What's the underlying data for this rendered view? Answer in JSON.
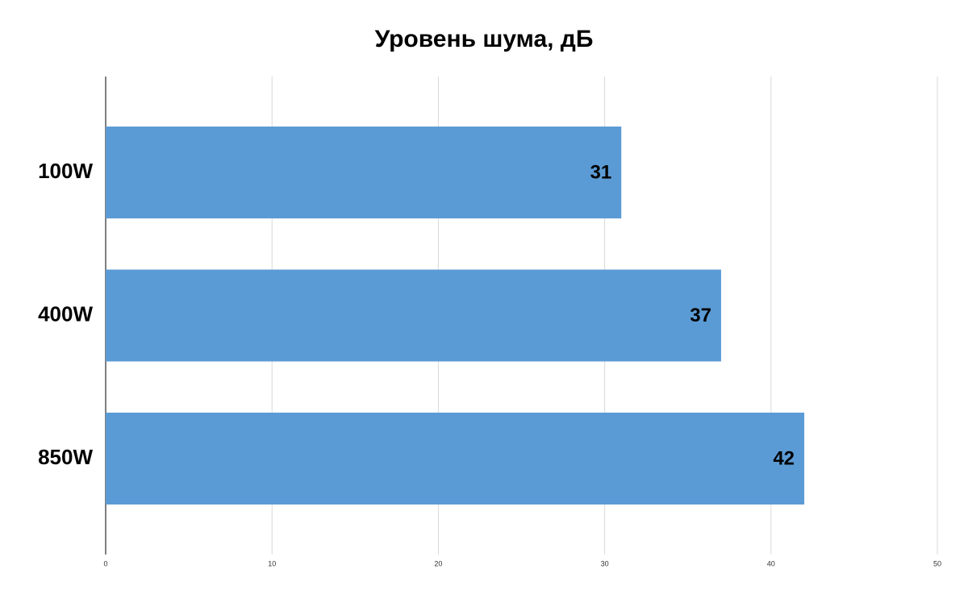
{
  "chart_data": {
    "type": "bar",
    "orientation": "horizontal",
    "title": "Уровень шума, дБ",
    "categories": [
      "100W",
      "400W",
      "850W"
    ],
    "values": [
      31,
      37,
      42
    ],
    "color": "#5b9bd5",
    "xlim": [
      0,
      50
    ],
    "xticks": [
      0,
      10,
      20,
      30,
      40,
      50
    ],
    "grid": true
  }
}
